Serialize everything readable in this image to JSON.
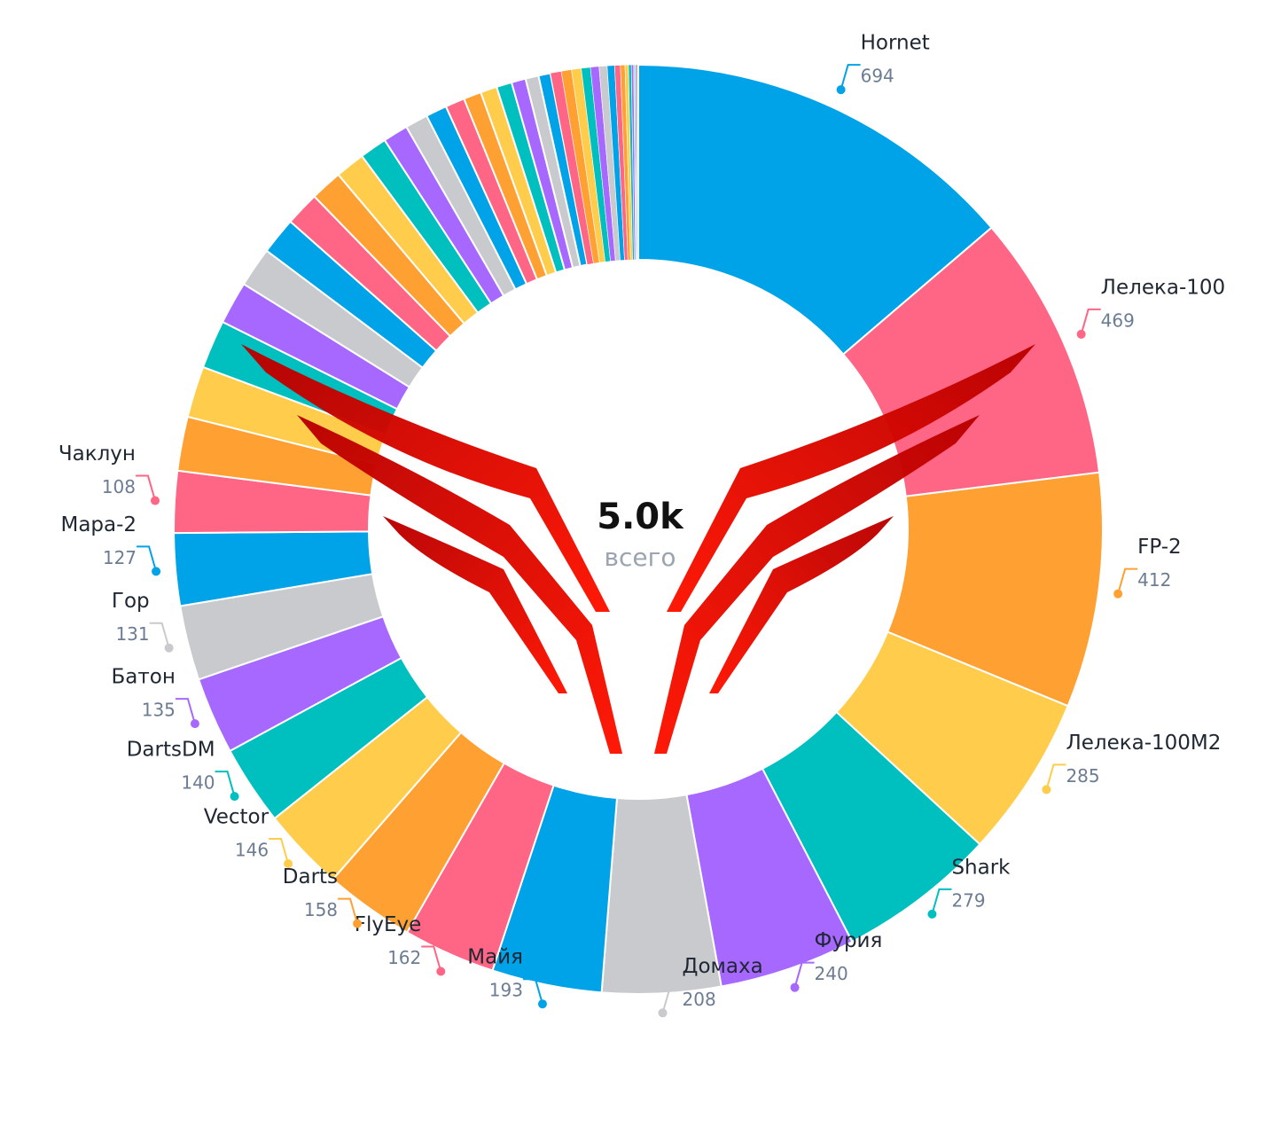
{
  "chart_data": {
    "type": "donut",
    "center_value": "5.0k",
    "center_label": "всего",
    "categories": [
      "Hornet",
      "Лелека-100",
      "FP-2",
      "Лелека-100M2",
      "Shark",
      "Фурия",
      "Домаха",
      "Майя",
      "FlyEye",
      "Darts",
      "Vector",
      "DartsDM",
      "Батон",
      "Гор",
      "Мара-2",
      "Чаклун",
      null,
      null,
      null,
      null,
      null,
      null,
      null,
      null,
      null,
      null,
      null,
      null,
      null,
      null,
      null,
      null,
      null,
      null,
      null,
      null,
      null,
      null,
      null,
      null,
      null,
      null,
      null,
      null,
      null,
      null,
      null,
      null,
      null,
      null,
      null,
      null
    ],
    "values": [
      694,
      469,
      412,
      285,
      279,
      240,
      208,
      193,
      162,
      158,
      146,
      140,
      135,
      131,
      127,
      108,
      95,
      90,
      85,
      75,
      70,
      65,
      60,
      56,
      52,
      48,
      44,
      40,
      37,
      34,
      31,
      29,
      27,
      25,
      23,
      21,
      19,
      18,
      17,
      16,
      15,
      14,
      13,
      10,
      8,
      6,
      5,
      4,
      3,
      2,
      2,
      1
    ],
    "colors": [
      "#00a2e8",
      "#ff6584",
      "#ffa033",
      "#ffcd4b",
      "#00bfbf",
      "#a768ff",
      "#c8cacd"
    ]
  }
}
